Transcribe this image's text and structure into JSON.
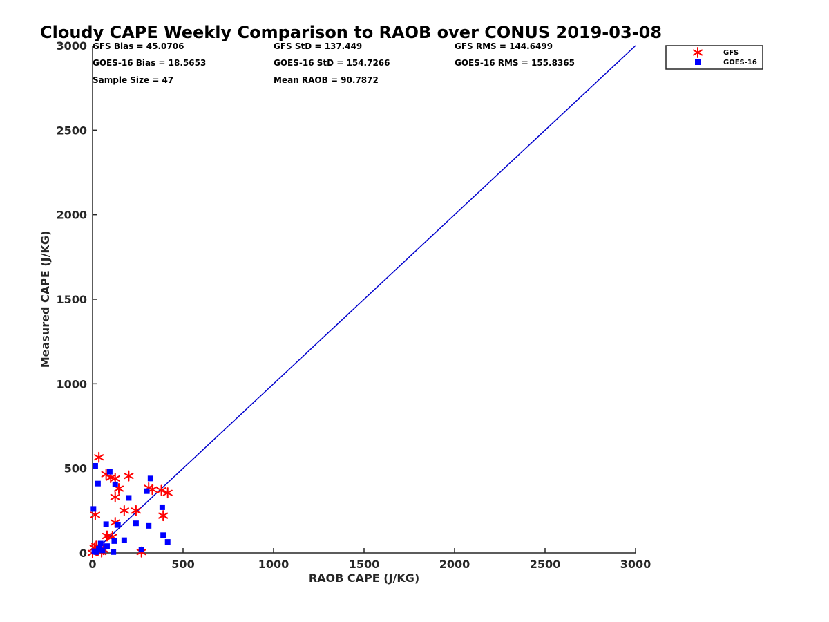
{
  "chart_data": {
    "type": "scatter",
    "title": "Cloudy CAPE Weekly Comparison to RAOB over CONUS 2019-03-08",
    "xlabel": "RAOB CAPE (J/KG)",
    "ylabel": "Measured CAPE (J/KG)",
    "xlim": [
      0,
      3000
    ],
    "ylim": [
      0,
      3000
    ],
    "xticks": [
      "0",
      "500",
      "1000",
      "1500",
      "2000",
      "2500",
      "3000"
    ],
    "yticks": [
      "0",
      "500",
      "1000",
      "1500",
      "2000",
      "2500",
      "3000"
    ],
    "grid": false,
    "legend_position": "top-right",
    "stats": [
      [
        "GFS Bias = 45.0706",
        "GFS StD = 137.449",
        "GFS RMS = 144.6499"
      ],
      [
        "GOES-16 Bias = 18.5653",
        "GOES-16 StD = 154.7266",
        "GOES-16 RMS = 155.8365"
      ],
      [
        "Sample Size = 47",
        "Mean RAOB = 90.7872",
        ""
      ]
    ],
    "reference_line": {
      "x": [
        0,
        3000
      ],
      "y": [
        0,
        3000
      ],
      "color": "#0000cc"
    },
    "series": [
      {
        "name": "GFS",
        "marker": "asterisk",
        "color": "#ff0000",
        "points": [
          [
            35,
            565
          ],
          [
            75,
            465
          ],
          [
            100,
            445
          ],
          [
            125,
            440
          ],
          [
            200,
            455
          ],
          [
            145,
            380
          ],
          [
            125,
            330
          ],
          [
            310,
            385
          ],
          [
            330,
            375
          ],
          [
            380,
            370
          ],
          [
            415,
            355
          ],
          [
            15,
            225
          ],
          [
            175,
            250
          ],
          [
            240,
            250
          ],
          [
            390,
            220
          ],
          [
            125,
            180
          ],
          [
            80,
            100
          ],
          [
            110,
            95
          ],
          [
            270,
            5
          ],
          [
            10,
            30
          ],
          [
            30,
            15
          ],
          [
            50,
            5
          ],
          [
            60,
            20
          ],
          [
            0,
            0
          ],
          [
            20,
            40
          ]
        ]
      },
      {
        "name": "GOES-16",
        "marker": "square",
        "color": "#0000ff",
        "points": [
          [
            15,
            515
          ],
          [
            95,
            480
          ],
          [
            30,
            410
          ],
          [
            125,
            405
          ],
          [
            320,
            440
          ],
          [
            200,
            325
          ],
          [
            300,
            365
          ],
          [
            385,
            270
          ],
          [
            5,
            260
          ],
          [
            75,
            170
          ],
          [
            140,
            165
          ],
          [
            240,
            175
          ],
          [
            310,
            160
          ],
          [
            390,
            105
          ],
          [
            415,
            65
          ],
          [
            120,
            70
          ],
          [
            175,
            75
          ],
          [
            80,
            40
          ],
          [
            45,
            55
          ],
          [
            20,
            5
          ],
          [
            270,
            20
          ],
          [
            115,
            5
          ],
          [
            10,
            10
          ],
          [
            35,
            25
          ],
          [
            55,
            15
          ]
        ]
      }
    ]
  }
}
